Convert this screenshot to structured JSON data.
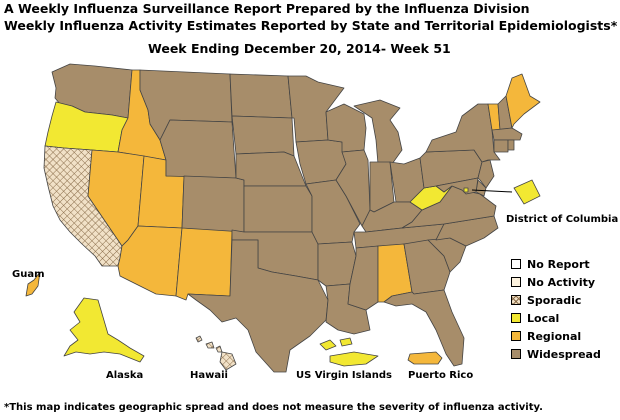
{
  "title_line1": "A Weekly Influenza Surveillance Report Prepared by the Influenza Division",
  "title_line2": "Weekly Influenza Activity Estimates Reported by State and Territorial Epidemiologists*",
  "week_label": "Week Ending December 20, 2014- Week 51",
  "footnote": "*This map indicates geographic spread and does not measure the severity of influenza activity.",
  "legend": [
    {
      "key": "no_report",
      "label": "No Report",
      "color": "#ffffff"
    },
    {
      "key": "no_activity",
      "label": "No Activity",
      "color": "#fdf3df"
    },
    {
      "key": "sporadic",
      "label": "Sporadic",
      "color": "#f1e1c7"
    },
    {
      "key": "local",
      "label": "Local",
      "color": "#f2e832"
    },
    {
      "key": "regional",
      "label": "Regional",
      "color": "#f4b73b"
    },
    {
      "key": "widespread",
      "label": "Widespread",
      "color": "#a78d6a"
    }
  ],
  "inset_labels": {
    "dc": "District of Columbia",
    "guam": "Guam",
    "alaska": "Alaska",
    "hawaii": "Hawaii",
    "vi": "US Virgin Islands",
    "pr": "Puerto Rico"
  },
  "activity": {
    "Washington": "widespread",
    "Oregon": "local",
    "California": "sporadic",
    "Idaho": "regional",
    "Nevada": "regional",
    "Utah": "regional",
    "Arizona": "regional",
    "New Mexico": "regional",
    "Montana": "widespread",
    "Wyoming": "widespread",
    "Colorado": "widespread",
    "North Dakota": "widespread",
    "South Dakota": "widespread",
    "Nebraska": "widespread",
    "Kansas": "widespread",
    "Oklahoma": "widespread",
    "Texas": "widespread",
    "Minnesota": "widespread",
    "Iowa": "widespread",
    "Missouri": "widespread",
    "Arkansas": "widespread",
    "Louisiana": "widespread",
    "Wisconsin": "widespread",
    "Illinois": "widespread",
    "Michigan": "widespread",
    "Indiana": "widespread",
    "Ohio": "widespread",
    "Kentucky": "widespread",
    "Tennessee": "widespread",
    "Mississippi": "widespread",
    "Alabama": "regional",
    "Georgia": "widespread",
    "Florida": "widespread",
    "South Carolina": "widespread",
    "North Carolina": "widespread",
    "Virginia": "widespread",
    "West Virginia": "local",
    "Pennsylvania": "widespread",
    "New York": "widespread",
    "Vermont": "regional",
    "New Hampshire": "widespread",
    "Maine": "regional",
    "Massachusetts": "widespread",
    "Connecticut": "widespread",
    "Rhode Island": "widespread",
    "New Jersey": "widespread",
    "Delaware": "widespread",
    "Maryland": "widespread",
    "District of Columbia": "local",
    "Alaska": "local",
    "Hawaii": "sporadic",
    "Guam": "regional",
    "US Virgin Islands": "local",
    "Puerto Rico": "regional"
  }
}
